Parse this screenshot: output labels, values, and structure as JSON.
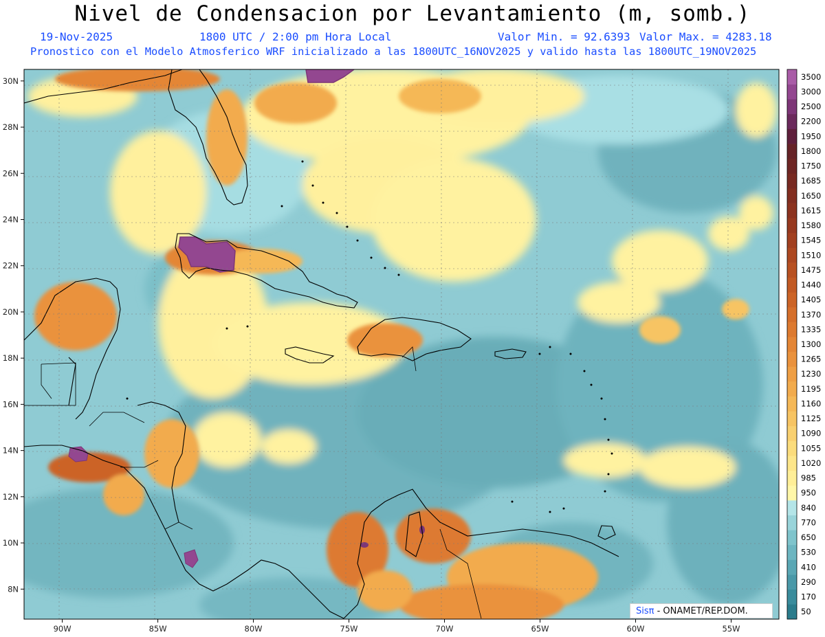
{
  "header": {
    "title": "Nivel de Condensacion por Levantamiento (m, somb.)",
    "date": "19-Nov-2025",
    "time": "1800 UTC / 2:00 pm Hora Local",
    "min_label": "Valor Min. = 92.6393",
    "max_label": "Valor Max. = 4283.18",
    "subtitle": "Pronostico con el Modelo Atmosferico WRF inicializado a las 1800UTC_16NOV2025 y valido hasta las  1800UTC_19NOV2025"
  },
  "credit": {
    "brand": "Sisπ",
    "org": " - ONAMET/REP.DOM."
  },
  "chart_data": {
    "type": "heatmap",
    "variable": "Nivel de Condensacion por Levantamiento",
    "units": "m",
    "value_min": 92.6393,
    "value_max": 4283.18,
    "lon_range": [
      -92,
      -52.5
    ],
    "lat_range": [
      6.7,
      30.5
    ],
    "lon_ticks": [
      "90W",
      "85W",
      "80W",
      "75W",
      "70W",
      "65W",
      "60W",
      "55W"
    ],
    "lat_ticks": [
      "8N",
      "10N",
      "12N",
      "14N",
      "16N",
      "18N",
      "20N",
      "22N",
      "24N",
      "26N",
      "28N",
      "30N"
    ],
    "grid": true,
    "colorbar": [
      {
        "label": "50",
        "color": "#2b7c8c"
      },
      {
        "label": "170",
        "color": "#3a8c9c"
      },
      {
        "label": "290",
        "color": "#4a99a8"
      },
      {
        "label": "410",
        "color": "#5aa7b4"
      },
      {
        "label": "530",
        "color": "#6db6c1"
      },
      {
        "label": "650",
        "color": "#7fc4cc"
      },
      {
        "label": "770",
        "color": "#99d4da"
      },
      {
        "label": "840",
        "color": "#b4e5e8"
      },
      {
        "label": "950",
        "color": "#fff7a8"
      },
      {
        "label": "985",
        "color": "#ffef98"
      },
      {
        "label": "1020",
        "color": "#fde68a"
      },
      {
        "label": "1055",
        "color": "#fbdc7c"
      },
      {
        "label": "1090",
        "color": "#f9d070"
      },
      {
        "label": "1125",
        "color": "#f7c463"
      },
      {
        "label": "1160",
        "color": "#f5b857"
      },
      {
        "label": "1195",
        "color": "#f2ab4d"
      },
      {
        "label": "1230",
        "color": "#ef9f45"
      },
      {
        "label": "1265",
        "color": "#ea923d"
      },
      {
        "label": "1300",
        "color": "#e48636"
      },
      {
        "label": "1335",
        "color": "#dd7a30"
      },
      {
        "label": "1370",
        "color": "#d56f2b"
      },
      {
        "label": "1405",
        "color": "#cc6427"
      },
      {
        "label": "1440",
        "color": "#c25a24"
      },
      {
        "label": "1475",
        "color": "#b85122"
      },
      {
        "label": "1510",
        "color": "#ad4821"
      },
      {
        "label": "1545",
        "color": "#a24020"
      },
      {
        "label": "1580",
        "color": "#97391f"
      },
      {
        "label": "1615",
        "color": "#8c331f"
      },
      {
        "label": "1650",
        "color": "#822e20"
      },
      {
        "label": "1685",
        "color": "#782a22"
      },
      {
        "label": "1750",
        "color": "#6e2624"
      },
      {
        "label": "1800",
        "color": "#662327"
      },
      {
        "label": "1950",
        "color": "#5f1f3c"
      },
      {
        "label": "2200",
        "color": "#6b2a5c"
      },
      {
        "label": "2500",
        "color": "#7d3677"
      },
      {
        "label": "3000",
        "color": "#934790"
      },
      {
        "label": "3500",
        "color": "#a95ca7"
      }
    ]
  }
}
